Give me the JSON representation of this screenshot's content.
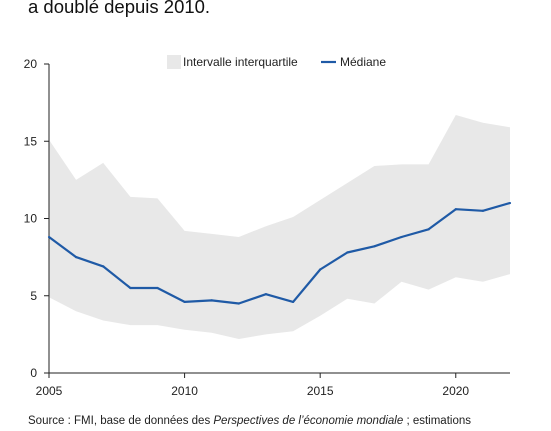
{
  "header": {
    "subtitle": "a doublé depuis 2010."
  },
  "footer": {
    "source_prefix": "Source : FMI, base de données des ",
    "source_italic": "Perspectives de l’économie mondiale",
    "source_suffix": " ; estimations"
  },
  "colors": {
    "band": "#e8e8e8",
    "median": "#1f5aa6",
    "axis": "#222222"
  },
  "chart_data": {
    "type": "area",
    "title": "",
    "xlabel": "",
    "ylabel": "",
    "xlim": [
      2005,
      2022
    ],
    "ylim": [
      0,
      20
    ],
    "x_ticks": [
      2005,
      2010,
      2015,
      2020
    ],
    "y_ticks": [
      0,
      5,
      10,
      15,
      20
    ],
    "grid": false,
    "legend": {
      "placement": "top",
      "entries": [
        "Intervalle interquartile",
        "Médiane"
      ]
    },
    "x": [
      2005,
      2006,
      2007,
      2008,
      2009,
      2010,
      2011,
      2012,
      2013,
      2014,
      2015,
      2016,
      2017,
      2018,
      2019,
      2020,
      2021,
      2022
    ],
    "series": [
      {
        "name": "Médiane",
        "kind": "line",
        "values": [
          8.8,
          7.5,
          6.9,
          5.5,
          5.5,
          4.6,
          4.7,
          4.5,
          5.1,
          4.6,
          6.7,
          7.8,
          8.2,
          8.8,
          9.3,
          10.6,
          10.5,
          11.0
        ]
      },
      {
        "name": "Intervalle interquartile",
        "kind": "band",
        "lower": [
          4.9,
          4.0,
          3.4,
          3.1,
          3.1,
          2.8,
          2.6,
          2.2,
          2.5,
          2.7,
          3.7,
          4.8,
          4.5,
          5.9,
          5.4,
          6.2,
          5.9,
          6.4
        ],
        "upper": [
          15.1,
          12.5,
          13.6,
          11.4,
          11.3,
          9.2,
          9.0,
          8.8,
          9.5,
          10.1,
          11.2,
          12.3,
          13.4,
          13.5,
          13.5,
          16.7,
          16.2,
          15.9
        ]
      }
    ]
  }
}
